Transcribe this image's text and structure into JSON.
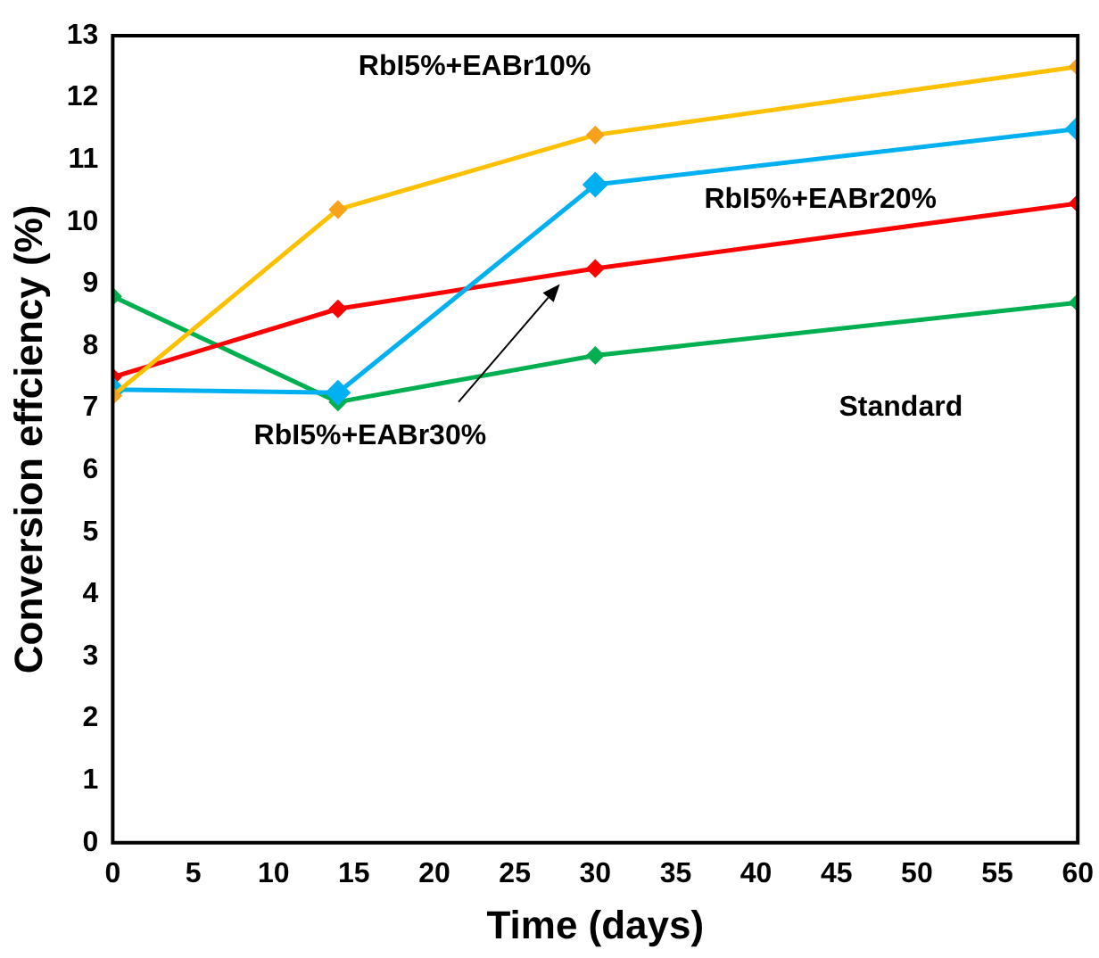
{
  "chart_data": {
    "type": "line",
    "xlabel": "Time (days)",
    "ylabel": "Conversion effciency (%)",
    "x": [
      0,
      14,
      30,
      60
    ],
    "xlim": [
      0,
      60
    ],
    "xticks": [
      0,
      5,
      10,
      15,
      20,
      25,
      30,
      35,
      40,
      45,
      50,
      55,
      60
    ],
    "ylim": [
      0,
      13
    ],
    "yticks": [
      0,
      1,
      2,
      3,
      4,
      5,
      6,
      7,
      8,
      9,
      10,
      11,
      12,
      13
    ],
    "grid": false,
    "legend": false,
    "marker": "diamond",
    "line_style": "solid",
    "series": [
      {
        "name": "RbI5%+EABr10%",
        "color": "#ffc000",
        "values": [
          7.2,
          10.2,
          11.4,
          12.5
        ]
      },
      {
        "name": "RbI5%+EABr20%",
        "color": "#00b0f0",
        "values": [
          7.3,
          7.25,
          10.6,
          11.5
        ]
      },
      {
        "name": "RbI5%+EABr30%",
        "color": "#ff0000",
        "values": [
          7.5,
          8.6,
          9.25,
          10.3
        ]
      },
      {
        "name": "Standard",
        "color": "#00b050",
        "values": [
          8.8,
          7.1,
          7.85,
          8.7
        ]
      }
    ]
  }
}
